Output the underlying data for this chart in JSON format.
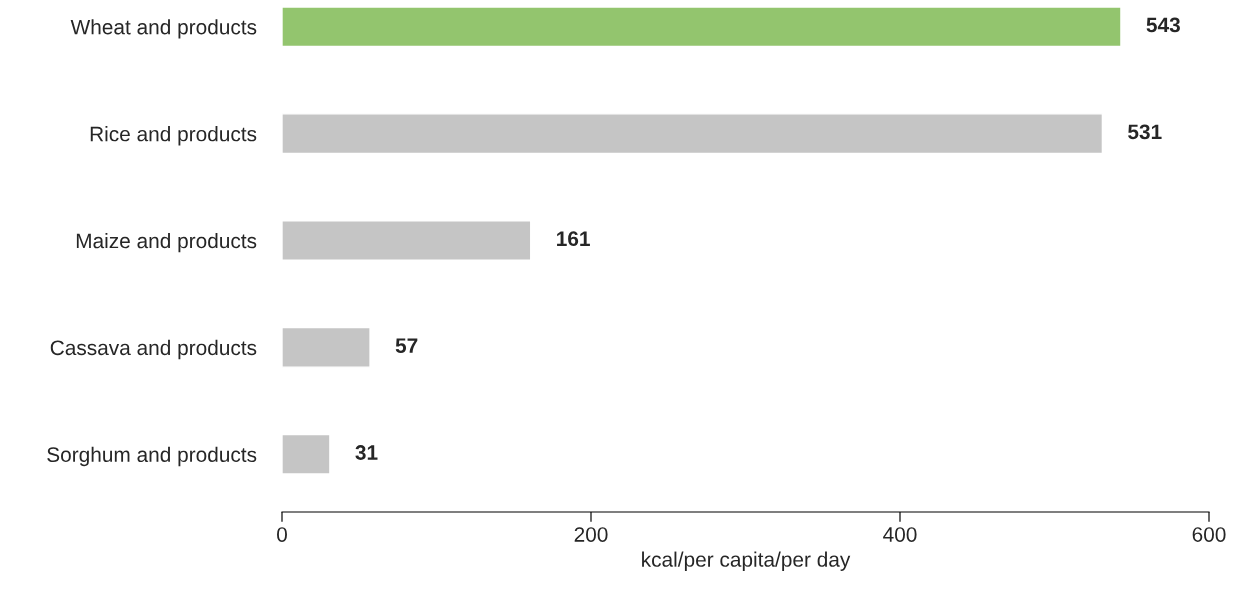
{
  "chart_data": {
    "type": "bar",
    "orientation": "horizontal",
    "xlabel": "kcal/per capita/per day",
    "categories": [
      "Wheat and products",
      "Rice and products",
      "Maize and products",
      "Cassava and products",
      "Sorghum and products"
    ],
    "values": [
      543,
      531,
      161,
      57,
      31
    ],
    "colors": [
      "#93c56e",
      "#c5c5c5",
      "#c5c5c5",
      "#c5c5c5",
      "#c5c5c5"
    ],
    "xlim": [
      0,
      600
    ],
    "xticks": [
      0,
      200,
      400,
      600
    ],
    "data_labels": true,
    "grid": false,
    "legend": false
  }
}
